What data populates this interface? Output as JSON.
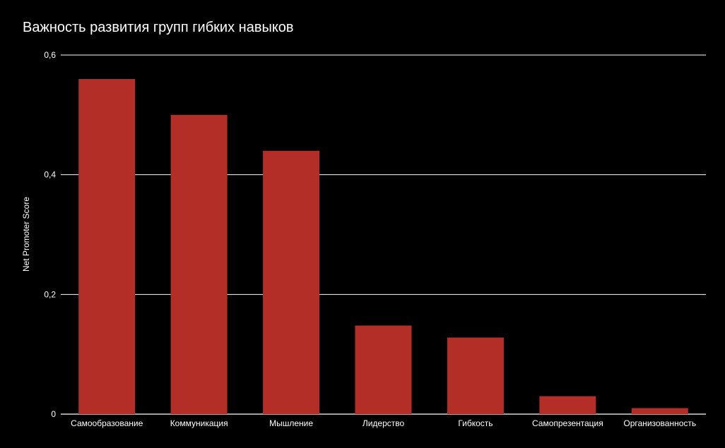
{
  "chart_data": {
    "type": "bar",
    "title": "Важность развития групп гибких навыков",
    "xlabel": "",
    "ylabel": "Net Promoter Score",
    "categories": [
      "Самообразование",
      "Коммуникация",
      "Мышление",
      "Лидерство",
      "Гибкость",
      "Самопрезентация",
      "Организованность"
    ],
    "values": [
      0.56,
      0.5,
      0.44,
      0.148,
      0.128,
      0.03,
      0.01
    ],
    "ylim": [
      0,
      0.6
    ],
    "yticks": [
      0,
      0.2,
      0.4,
      0.6
    ],
    "ytick_labels": [
      "0",
      "0,2",
      "0,4",
      "0,6"
    ],
    "grid": true,
    "legend": "none",
    "bar_color": "#b22e27",
    "background": "#000000",
    "gridline_color": "#ffffff"
  }
}
